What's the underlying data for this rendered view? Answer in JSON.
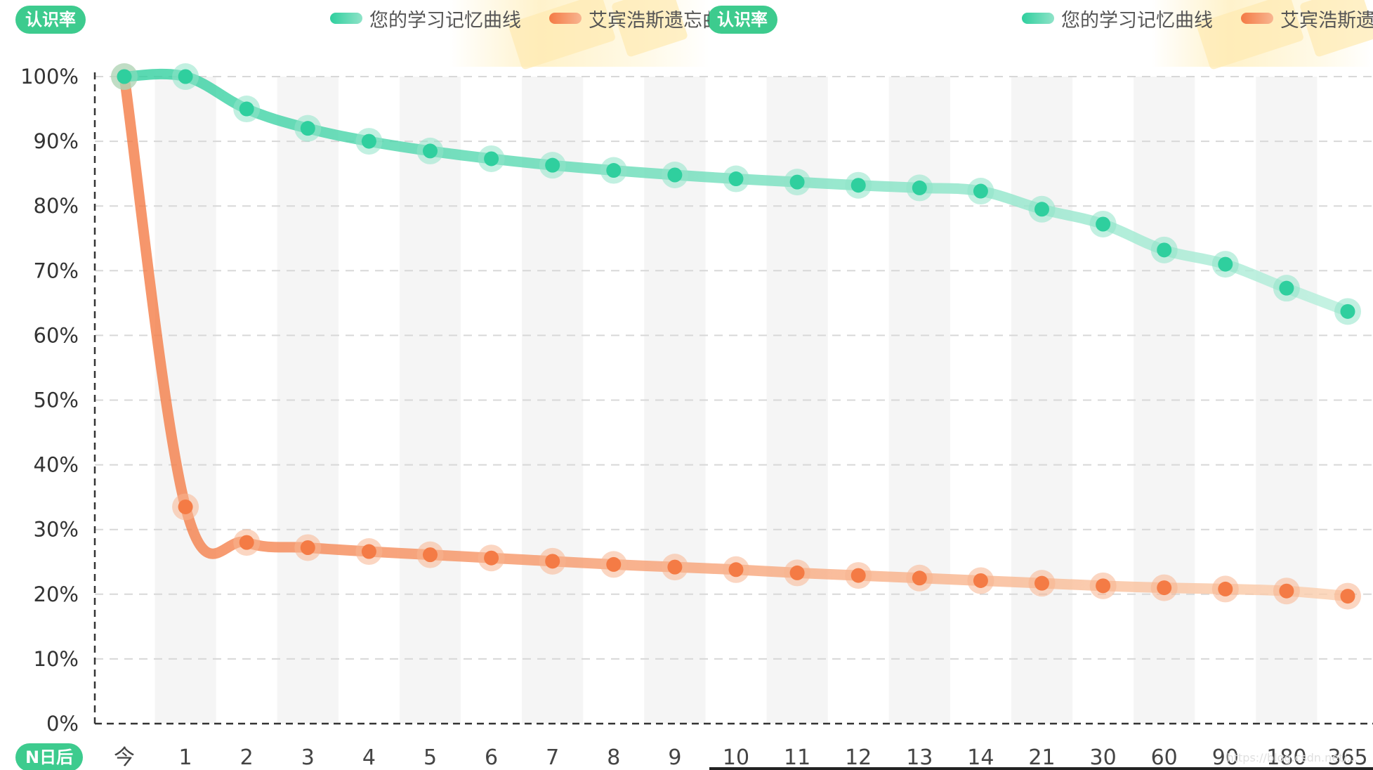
{
  "badges": {
    "y_left": "认识率",
    "y_right": "认识率",
    "x_axis": "N日后"
  },
  "legend_left": {
    "series_a": "您的学习记忆曲线",
    "series_b": "艾宾浩斯遗忘曲"
  },
  "legend_right": {
    "series_a": "您的学习记忆曲线",
    "series_b": "艾宾浩斯遗忘"
  },
  "watermark": "https://blog.csdn.net/...",
  "colors": {
    "teal": "#2fcf9e",
    "teal_light": "#8fe3c8",
    "orange": "#f47b45",
    "orange_light": "#f8b590",
    "badge_green": "#3dcb8e",
    "grid": "#d8d8d8",
    "axis": "#333333",
    "band": "#f5f5f5"
  },
  "icons": {
    "legend_swatch_a": "teal-bar",
    "legend_swatch_b": "orange-bar"
  },
  "chart_data": {
    "type": "line",
    "title": "",
    "xlabel": "N日后",
    "ylabel": "认识率",
    "categories": [
      "今",
      "1",
      "2",
      "3",
      "4",
      "5",
      "6",
      "7",
      "8",
      "9",
      "10",
      "11",
      "12",
      "13",
      "14",
      "21",
      "30",
      "60",
      "90",
      "180",
      "365"
    ],
    "yticks": [
      "0%",
      "10%",
      "20%",
      "30%",
      "40%",
      "50%",
      "60%",
      "70%",
      "80%",
      "90%",
      "100%"
    ],
    "ylim": [
      0,
      100
    ],
    "grid": true,
    "series": [
      {
        "name": "您的学习记忆曲线",
        "color": "teal",
        "values": [
          100,
          100,
          95,
          92,
          90,
          88.5,
          87.3,
          86.3,
          85.5,
          84.8,
          84.2,
          83.7,
          83.2,
          82.8,
          82.3,
          79.5,
          77.2,
          73.2,
          71,
          67.3,
          63.7
        ]
      },
      {
        "name": "艾宾浩斯遗忘曲线",
        "color": "orange",
        "values": [
          100,
          33.5,
          28,
          27.2,
          26.6,
          26.1,
          25.6,
          25.1,
          24.6,
          24.2,
          23.8,
          23.3,
          22.9,
          22.5,
          22.1,
          21.7,
          21.3,
          21,
          20.8,
          20.5,
          19.7
        ]
      }
    ]
  }
}
